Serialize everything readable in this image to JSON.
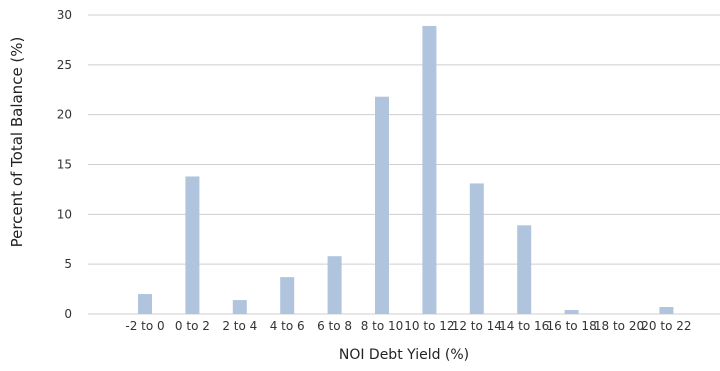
{
  "chart_data": {
    "type": "bar",
    "title": "",
    "xlabel": "NOI Debt Yield (%)",
    "ylabel": "Percent of Total Balance (%)",
    "ylim": [
      0,
      30
    ],
    "yticks": [
      0,
      5,
      10,
      15,
      20,
      25,
      30
    ],
    "grid": true,
    "legend": "none",
    "bar_color": "#b0c4de",
    "grid_color": "#cfcfcf",
    "categories": [
      "-2 to 0",
      "0 to 2",
      "2 to 4",
      "4 to 6",
      "6 to 8",
      "8 to 10",
      "10 to 12",
      "12 to 14",
      "14 to 16",
      "16 to 18",
      "18 to 20",
      "20 to 22"
    ],
    "values": [
      2.0,
      13.8,
      1.4,
      3.7,
      5.8,
      21.8,
      28.9,
      13.1,
      8.9,
      0.4,
      0.0,
      0.7
    ]
  }
}
